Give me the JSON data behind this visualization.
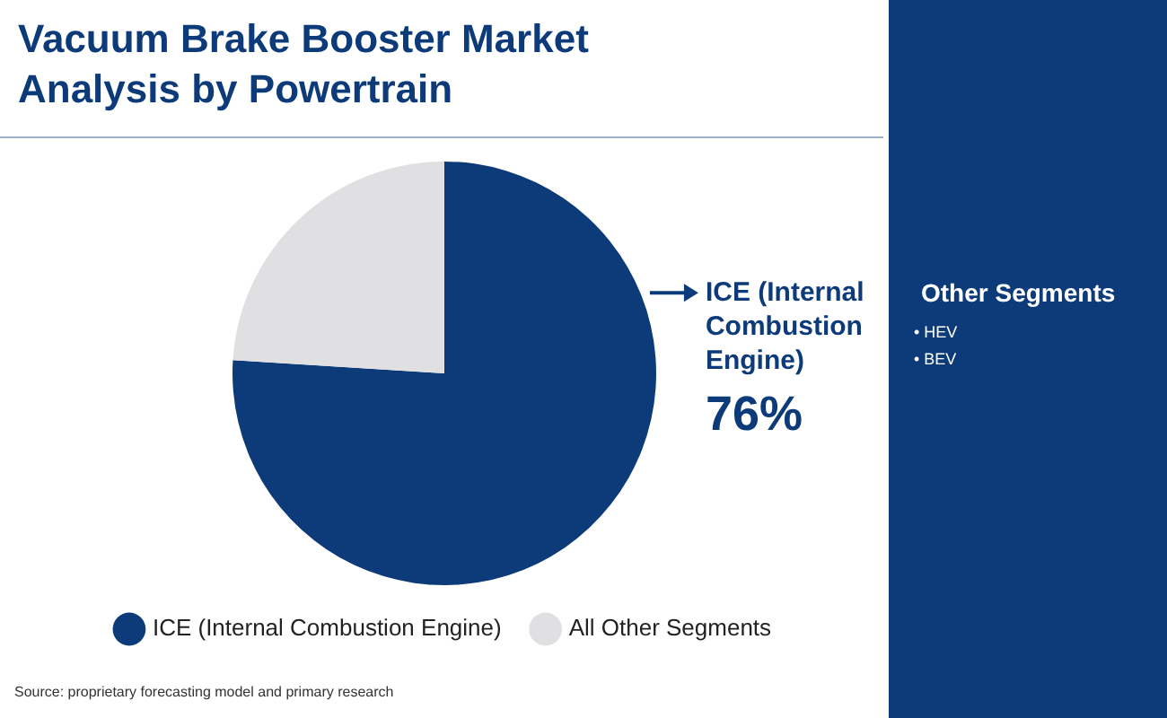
{
  "chart_data": {
    "type": "pie",
    "title": "Vacuum Brake Booster Market Analysis by Powertrain",
    "categories": [
      "ICE (Internal Combustion Engine)",
      "All Other Segments"
    ],
    "values": [
      76,
      24
    ],
    "colors": [
      "#0d3b7a",
      "#e0e0e2"
    ],
    "value_labels": [
      "76%",
      null
    ],
    "legend": "bottom",
    "annotations": [
      "Other Segments",
      "• HEV",
      "• BEV",
      "Source: proprietary forecasting model and primary research"
    ]
  }
}
